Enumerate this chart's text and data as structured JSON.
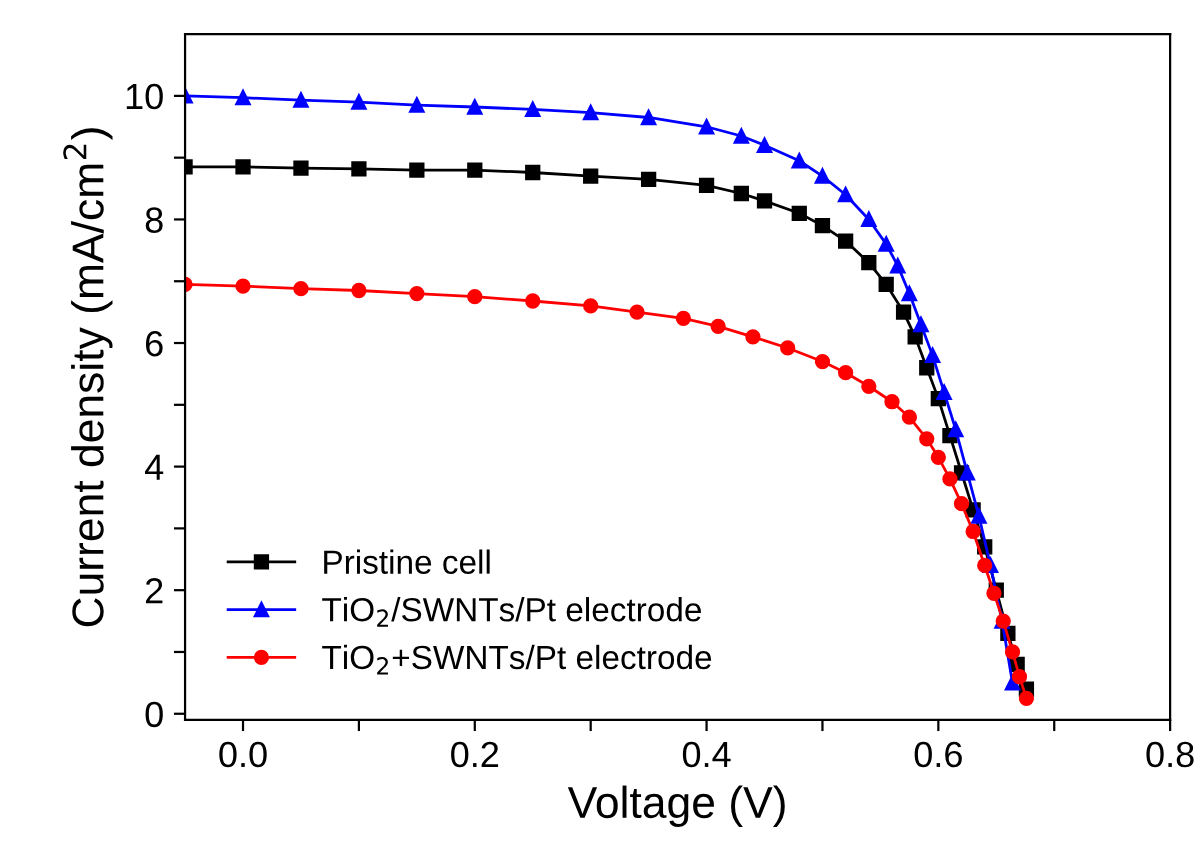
{
  "chart_data": {
    "type": "line",
    "xlabel": "Voltage (V)",
    "ylabel": "Current density (mA/cm$^{2}$)",
    "xlim": [
      -0.05,
      0.8
    ],
    "ylim": [
      -0.1,
      11
    ],
    "xticks": [
      {
        "value": 0.0,
        "label": "0.0"
      },
      {
        "value": 0.1,
        "label": null
      },
      0.2,
      {
        "value": 0.3,
        "label": null
      },
      0.4,
      {
        "value": 0.5,
        "label": null
      },
      0.6,
      {
        "value": 0.7,
        "label": null
      },
      0.8
    ],
    "yticks": [
      0,
      {
        "value": 1,
        "label": null
      },
      2,
      {
        "value": 3,
        "label": null
      },
      4,
      {
        "value": 5,
        "label": null
      },
      6,
      {
        "value": 7,
        "label": null
      },
      8,
      {
        "value": 9,
        "label": null
      },
      10
    ],
    "grid": false,
    "legend": "bottom left",
    "series": [
      {
        "name": "Pristine cell",
        "color": "#000000",
        "marker": "square",
        "x": [
          -0.05,
          0.0,
          0.05,
          0.1,
          0.15,
          0.2,
          0.25,
          0.3,
          0.35,
          0.4,
          0.43,
          0.45,
          0.48,
          0.5,
          0.52,
          0.54,
          0.555,
          0.57,
          0.58,
          0.59,
          0.6,
          0.61,
          0.62,
          0.63,
          0.64,
          0.65,
          0.66,
          0.668,
          0.676
        ],
        "values": [
          8.85,
          8.85,
          8.83,
          8.82,
          8.8,
          8.8,
          8.76,
          8.7,
          8.65,
          8.55,
          8.42,
          8.3,
          8.1,
          7.9,
          7.65,
          7.3,
          6.95,
          6.5,
          6.1,
          5.6,
          5.1,
          4.5,
          3.9,
          3.3,
          2.7,
          2.0,
          1.3,
          0.8,
          0.4
        ]
      },
      {
        "name": "TiO$_{2}$/SWNTs/Pt electrode",
        "color": "#0000ff",
        "marker": "triangle",
        "x": [
          -0.05,
          0.0,
          0.05,
          0.1,
          0.15,
          0.2,
          0.25,
          0.3,
          0.35,
          0.4,
          0.43,
          0.45,
          0.48,
          0.5,
          0.52,
          0.54,
          0.555,
          0.565,
          0.575,
          0.585,
          0.595,
          0.605,
          0.615,
          0.625,
          0.635,
          0.645,
          0.655,
          0.664
        ],
        "values": [
          10.0,
          9.97,
          9.93,
          9.9,
          9.85,
          9.82,
          9.78,
          9.73,
          9.65,
          9.5,
          9.35,
          9.2,
          8.95,
          8.7,
          8.4,
          8.0,
          7.6,
          7.25,
          6.8,
          6.3,
          5.8,
          5.2,
          4.6,
          3.9,
          3.2,
          2.4,
          1.5,
          0.5
        ]
      },
      {
        "name": "TiO$_{2}$+SWNTs/Pt electrode",
        "color": "#ff0000",
        "marker": "circle",
        "x": [
          -0.05,
          0.0,
          0.05,
          0.1,
          0.15,
          0.2,
          0.25,
          0.3,
          0.34,
          0.38,
          0.41,
          0.44,
          0.47,
          0.5,
          0.52,
          0.54,
          0.56,
          0.575,
          0.59,
          0.6,
          0.61,
          0.62,
          0.63,
          0.64,
          0.648,
          0.656,
          0.664,
          0.67,
          0.676
        ],
        "values": [
          6.95,
          6.92,
          6.88,
          6.85,
          6.8,
          6.75,
          6.68,
          6.6,
          6.5,
          6.4,
          6.27,
          6.1,
          5.92,
          5.7,
          5.52,
          5.3,
          5.05,
          4.8,
          4.45,
          4.15,
          3.8,
          3.4,
          2.95,
          2.4,
          1.95,
          1.5,
          1.0,
          0.6,
          0.25
        ]
      }
    ]
  }
}
